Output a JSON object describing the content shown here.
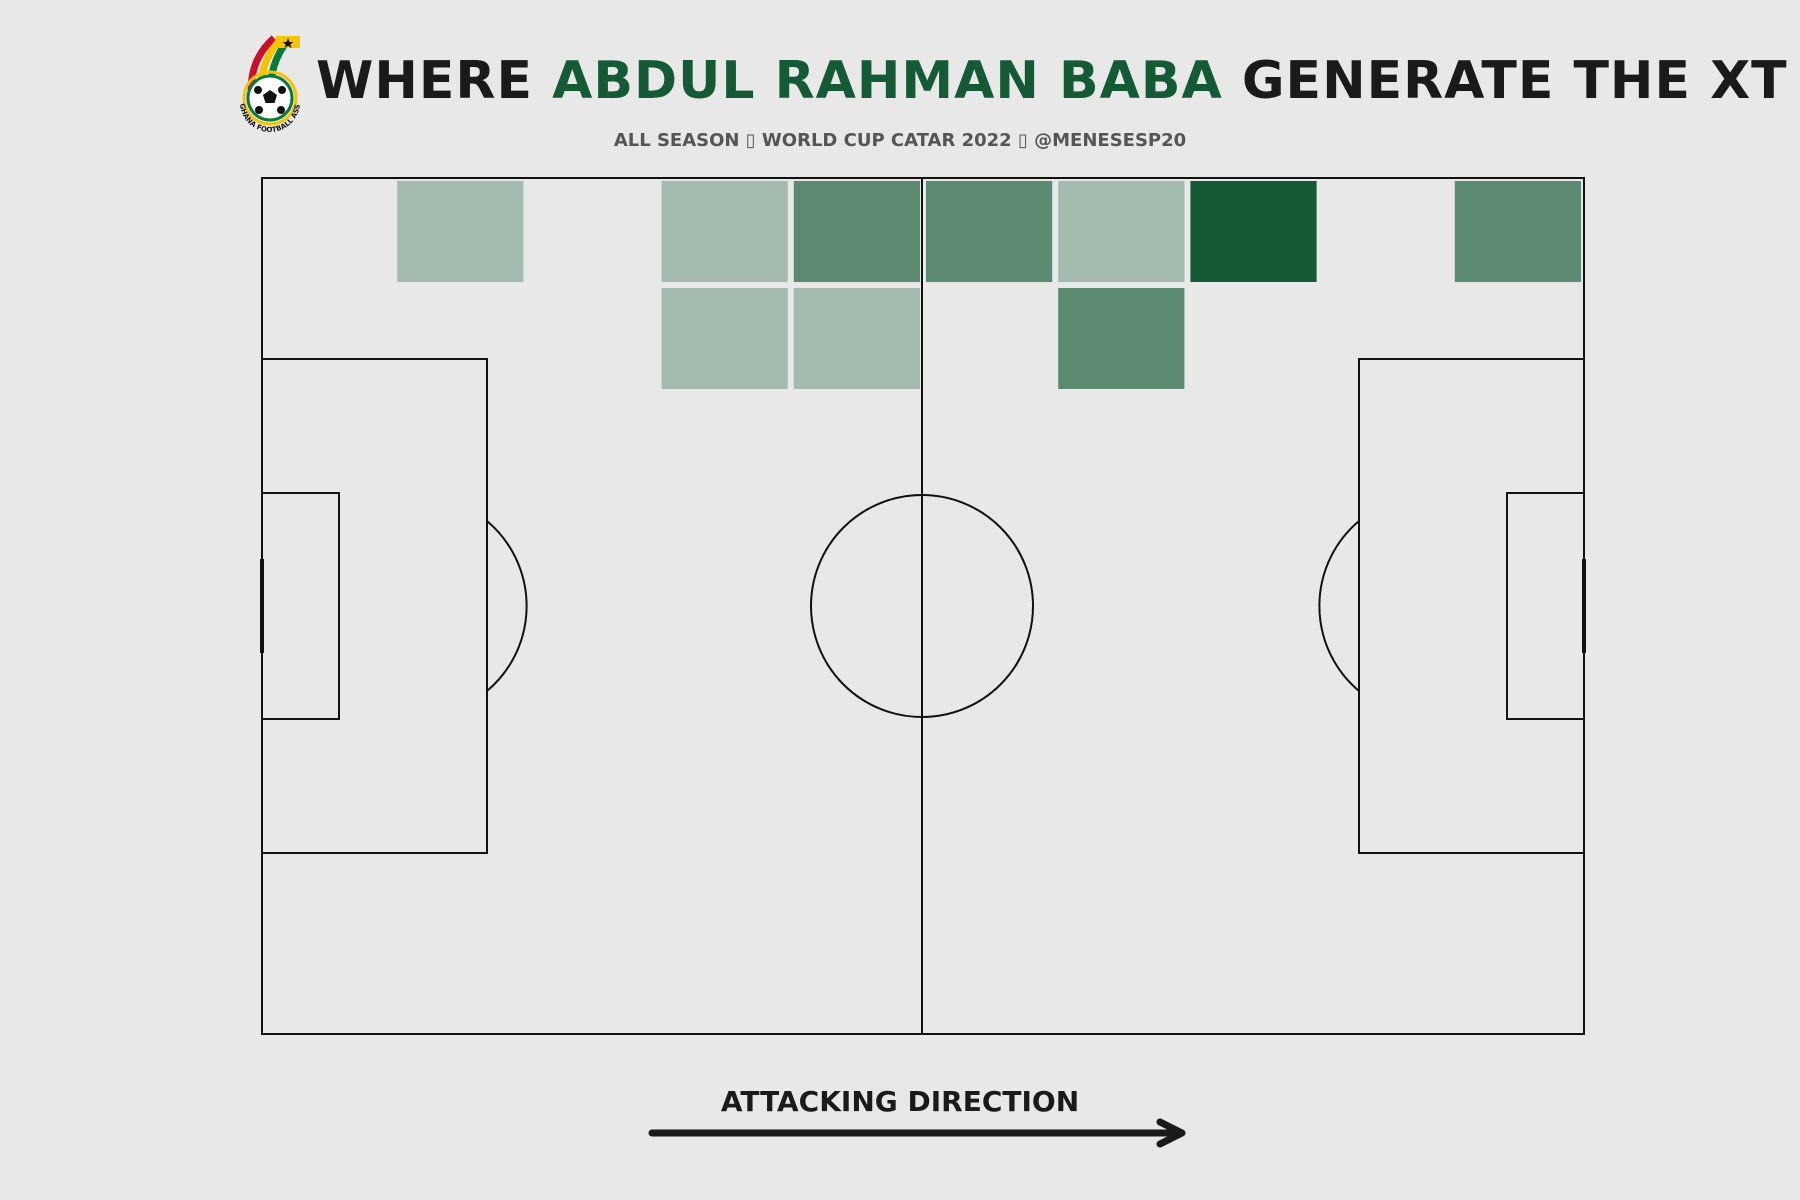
{
  "header": {
    "title_prefix": "WHERE ",
    "player": "ABDUL RAHMAN BABA",
    "title_suffix": " GENERATE THE XT",
    "subtitle": "ALL SEASON ▯ WORLD CUP CATAR 2022 ▯ @MENESESP20",
    "logo_text": "GHANA FOOTBALL ASSOCIATION"
  },
  "footer": {
    "attacking_direction": "ATTACKING DIRECTION"
  },
  "colors": {
    "background": "#e8e8e8",
    "lines": "#111111",
    "light": "#a3bbae",
    "mid": "#5c8a70",
    "dark": "#145a35"
  },
  "chart_data": {
    "type": "heatmap",
    "title": "WHERE ABDUL RAHMAN BABA GENERATE THE XT",
    "grid": {
      "columns": 10,
      "rows": 5
    },
    "pitch": {
      "length": 120,
      "width": 80
    },
    "levels": [
      "low",
      "medium",
      "high"
    ],
    "cells": [
      {
        "col": 1,
        "row": 0,
        "level": "low"
      },
      {
        "col": 3,
        "row": 0,
        "level": "low"
      },
      {
        "col": 4,
        "row": 0,
        "level": "medium"
      },
      {
        "col": 5,
        "row": 0,
        "level": "medium"
      },
      {
        "col": 6,
        "row": 0,
        "level": "low"
      },
      {
        "col": 7,
        "row": 0,
        "level": "high"
      },
      {
        "col": 9,
        "row": 0,
        "level": "medium"
      },
      {
        "col": 3,
        "row": 1,
        "level": "low"
      },
      {
        "col": 4,
        "row": 1,
        "level": "low"
      },
      {
        "col": 6,
        "row": 1,
        "level": "medium"
      }
    ]
  }
}
